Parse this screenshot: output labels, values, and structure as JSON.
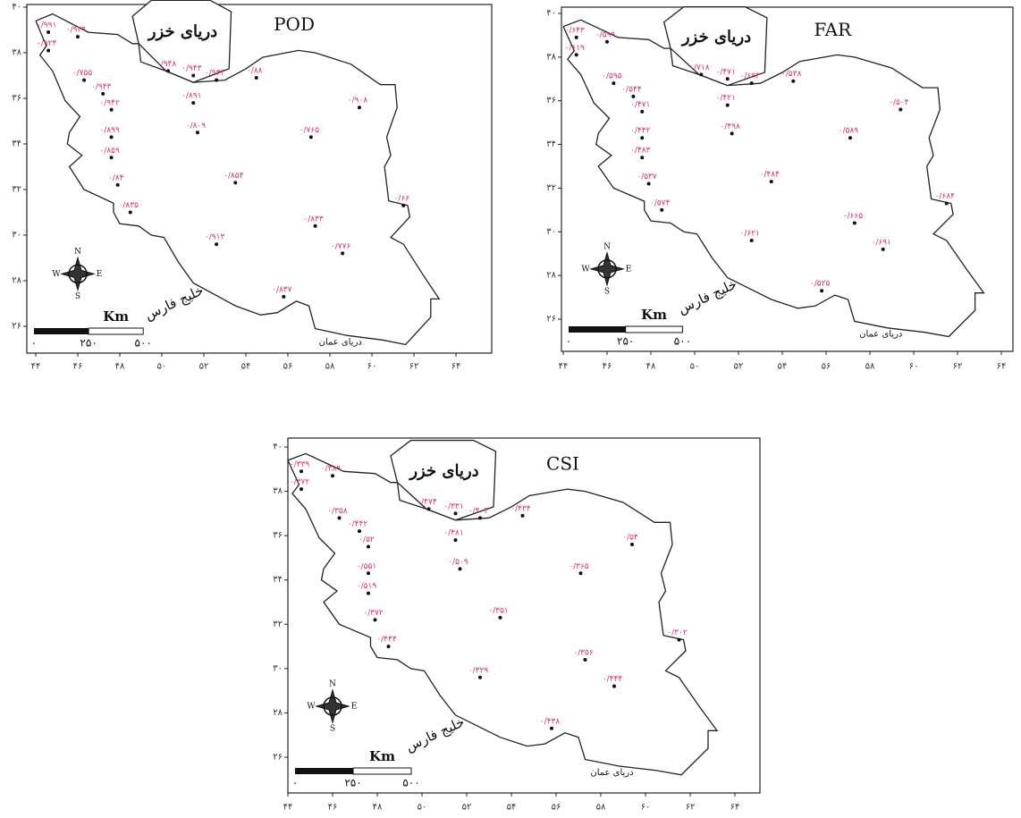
{
  "panels": [
    {
      "title": "POD",
      "xticks": [
        "۴۴",
        "۴۶",
        "۴۸",
        "۵۰",
        "۵۲",
        "۵۴",
        "۵۶",
        "۵۸",
        "۶۰",
        "۶۲",
        "۶۴"
      ],
      "yticks": [
        "۴۰",
        "۳۸",
        "۳۶",
        "۳۴",
        "۳۲",
        "۳۰",
        "۲۸",
        "۲۶"
      ],
      "caspian": "دریای خزر",
      "gulf": "خلیج فارس",
      "oman": "دریای عمان",
      "scale_unit": "Km",
      "scale_labels": [
        "۰",
        "۲۵۰",
        "۵۰۰"
      ],
      "compass": [
        "N",
        "E",
        "S",
        "W"
      ],
      "stations": [
        "۰/۹۹۱",
        "۰/۹۲۹",
        "۰/۹۲۴",
        "۰/۷۵۵",
        "۰/۹۴۳",
        "۰/۹۴۲",
        "۰/۸۹۹",
        "۰/۸۵۹",
        "۰/۸۴",
        "۰/۸۳۵",
        "۰/۹۴۸",
        "۰/۹۴۳",
        "۰/۹۳۴",
        "۰/۸۸",
        "۰/۸۹۱",
        "۰/۸۰۹",
        "۰/۸۵۴",
        "۰/۷۶۵",
        "۰/۹۰۸",
        "۰/۶۶",
        "۰/۹۱۳",
        "۰/۸۳۷",
        "۰/۸۳۳",
        "۰/۷۷۶"
      ]
    },
    {
      "title": "FAR",
      "xticks": [
        "۴۴",
        "۴۶",
        "۴۸",
        "۵۰",
        "۵۲",
        "۵۴",
        "۵۶",
        "۵۸",
        "۶۰",
        "۶۲",
        "۶۴"
      ],
      "yticks": [
        "۴۰",
        "۳۸",
        "۳۶",
        "۳۴",
        "۳۲",
        "۳۰",
        "۲۸",
        "۲۶"
      ],
      "caspian": "دریای خزر",
      "gulf": "خلیج فارس",
      "oman": "دریای عمان",
      "scale_unit": "Km",
      "scale_labels": [
        "۰",
        "۲۵۰",
        "۵۰۰"
      ],
      "compass": [
        "N",
        "E",
        "S",
        "W"
      ],
      "stations": [
        "۰/۶۴۳",
        "۰/۵۹۹",
        "۰/۶۱۹",
        "۰/۵۹۵",
        "۰/۵۴۴",
        "۰/۴۷۱",
        "۰/۴۴۲",
        "۰/۴۸۳",
        "۰/۵۳۷",
        "۰/۵۷۴",
        "۰/۷۱۸",
        "۰/۴۷۱",
        "۰/۶۹۴",
        "۰/۵۳۸",
        "۰/۴۲۱",
        "۰/۴۹۸",
        "۰/۴۸۴",
        "۰/۵۸۹",
        "۰/۵۰۴",
        "۰/۶۸۴",
        "۰/۶۲۱",
        "۰/۵۲۵",
        "۰/۶۶۵",
        "۰/۶۹۱"
      ]
    },
    {
      "title": "CSI",
      "xticks": [
        "۴۴",
        "۴۶",
        "۴۸",
        "۵۰",
        "۵۲",
        "۵۴",
        "۵۶",
        "۵۸",
        "۶۰",
        "۶۲",
        "۶۴"
      ],
      "yticks": [
        "۴۰",
        "۳۸",
        "۳۶",
        "۳۴",
        "۳۲",
        "۳۰",
        "۲۸",
        "۲۶"
      ],
      "caspian": "دریای خزر",
      "gulf": "خلیج فارس",
      "oman": "دریای عمان",
      "scale_unit": "Km",
      "scale_labels": [
        "۰",
        "۲۵۰",
        "۵۰۰"
      ],
      "compass": [
        "N",
        "E",
        "S",
        "W"
      ],
      "stations": [
        "۰/۳۳۹",
        "۰/۳۸۹",
        "۰/۳۷۲",
        "۰/۳۵۸",
        "۰/۴۴۲",
        "۰/۵۲",
        "۰/۵۵۱",
        "۰/۵۱۹",
        "۰/۳۷۲",
        "۰/۴۴۴",
        "۰/۴۷۴",
        "۰/۳۳۱",
        "۰/۴۰۴",
        "۰/۴۳۴",
        "۰/۴۸۱",
        "۰/۵۰۹",
        "۰/۳۵۱",
        "۰/۳۶۵",
        "۰/۵۴",
        "۰/۳۰۲",
        "۰/۳۲۹",
        "۰/۴۳۸",
        "۰/۳۵۶",
        "۰/۴۴۴"
      ]
    }
  ]
}
